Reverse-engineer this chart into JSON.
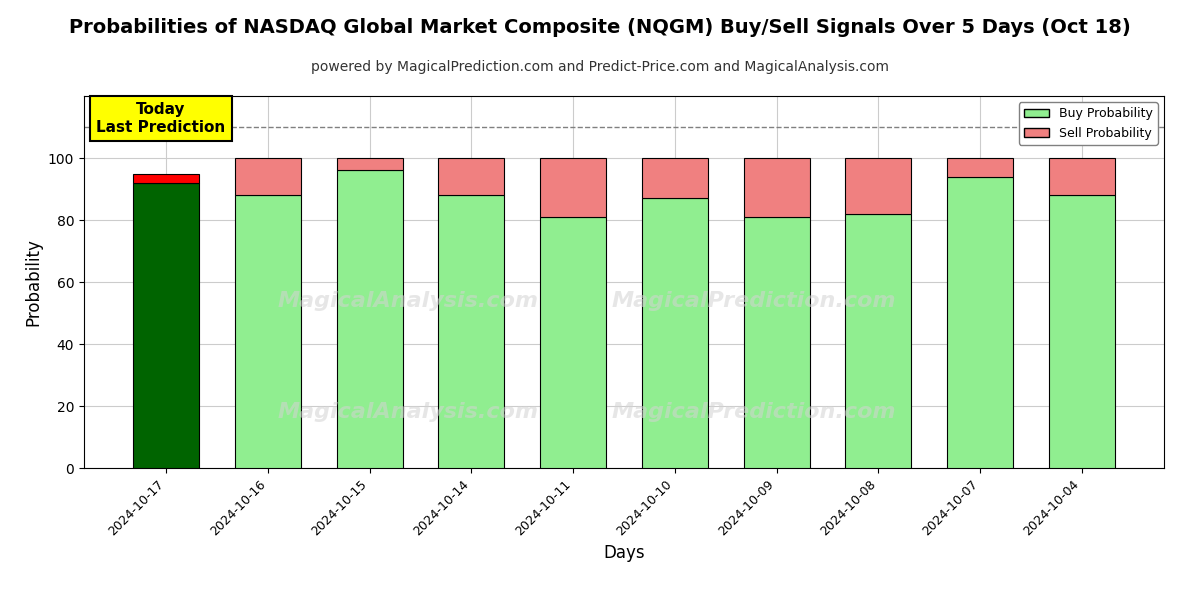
{
  "title": "Probabilities of NASDAQ Global Market Composite (NQGM) Buy/Sell Signals Over 5 Days (Oct 18)",
  "subtitle": "powered by MagicalPrediction.com and Predict-Price.com and MagicalAnalysis.com",
  "xlabel": "Days",
  "ylabel": "Probability",
  "categories": [
    "2024-10-17",
    "2024-10-16",
    "2024-10-15",
    "2024-10-14",
    "2024-10-11",
    "2024-10-10",
    "2024-10-09",
    "2024-10-08",
    "2024-10-07",
    "2024-10-04"
  ],
  "buy_values": [
    92,
    88,
    96,
    88,
    81,
    87,
    81,
    82,
    94,
    88
  ],
  "sell_values": [
    3,
    12,
    4,
    12,
    19,
    13,
    19,
    18,
    6,
    12
  ],
  "today_buy_color": "#006400",
  "today_sell_color": "#FF0000",
  "buy_color": "#90EE90",
  "sell_color": "#F08080",
  "bar_edge_color": "#000000",
  "ylim": [
    0,
    120
  ],
  "dashed_line_y": 110,
  "today_annotation_text": "Today\nLast Prediction",
  "legend_buy": "Buy Probability",
  "legend_sell": "Sell Probability",
  "background_color": "#FFFFFF",
  "grid_color": "#CCCCCC",
  "watermark1": "MagicalAnalysis.com",
  "watermark2": "MagicalPrediction.com",
  "title_fontsize": 14,
  "subtitle_fontsize": 10,
  "ylabel_fontsize": 12,
  "xlabel_fontsize": 12
}
